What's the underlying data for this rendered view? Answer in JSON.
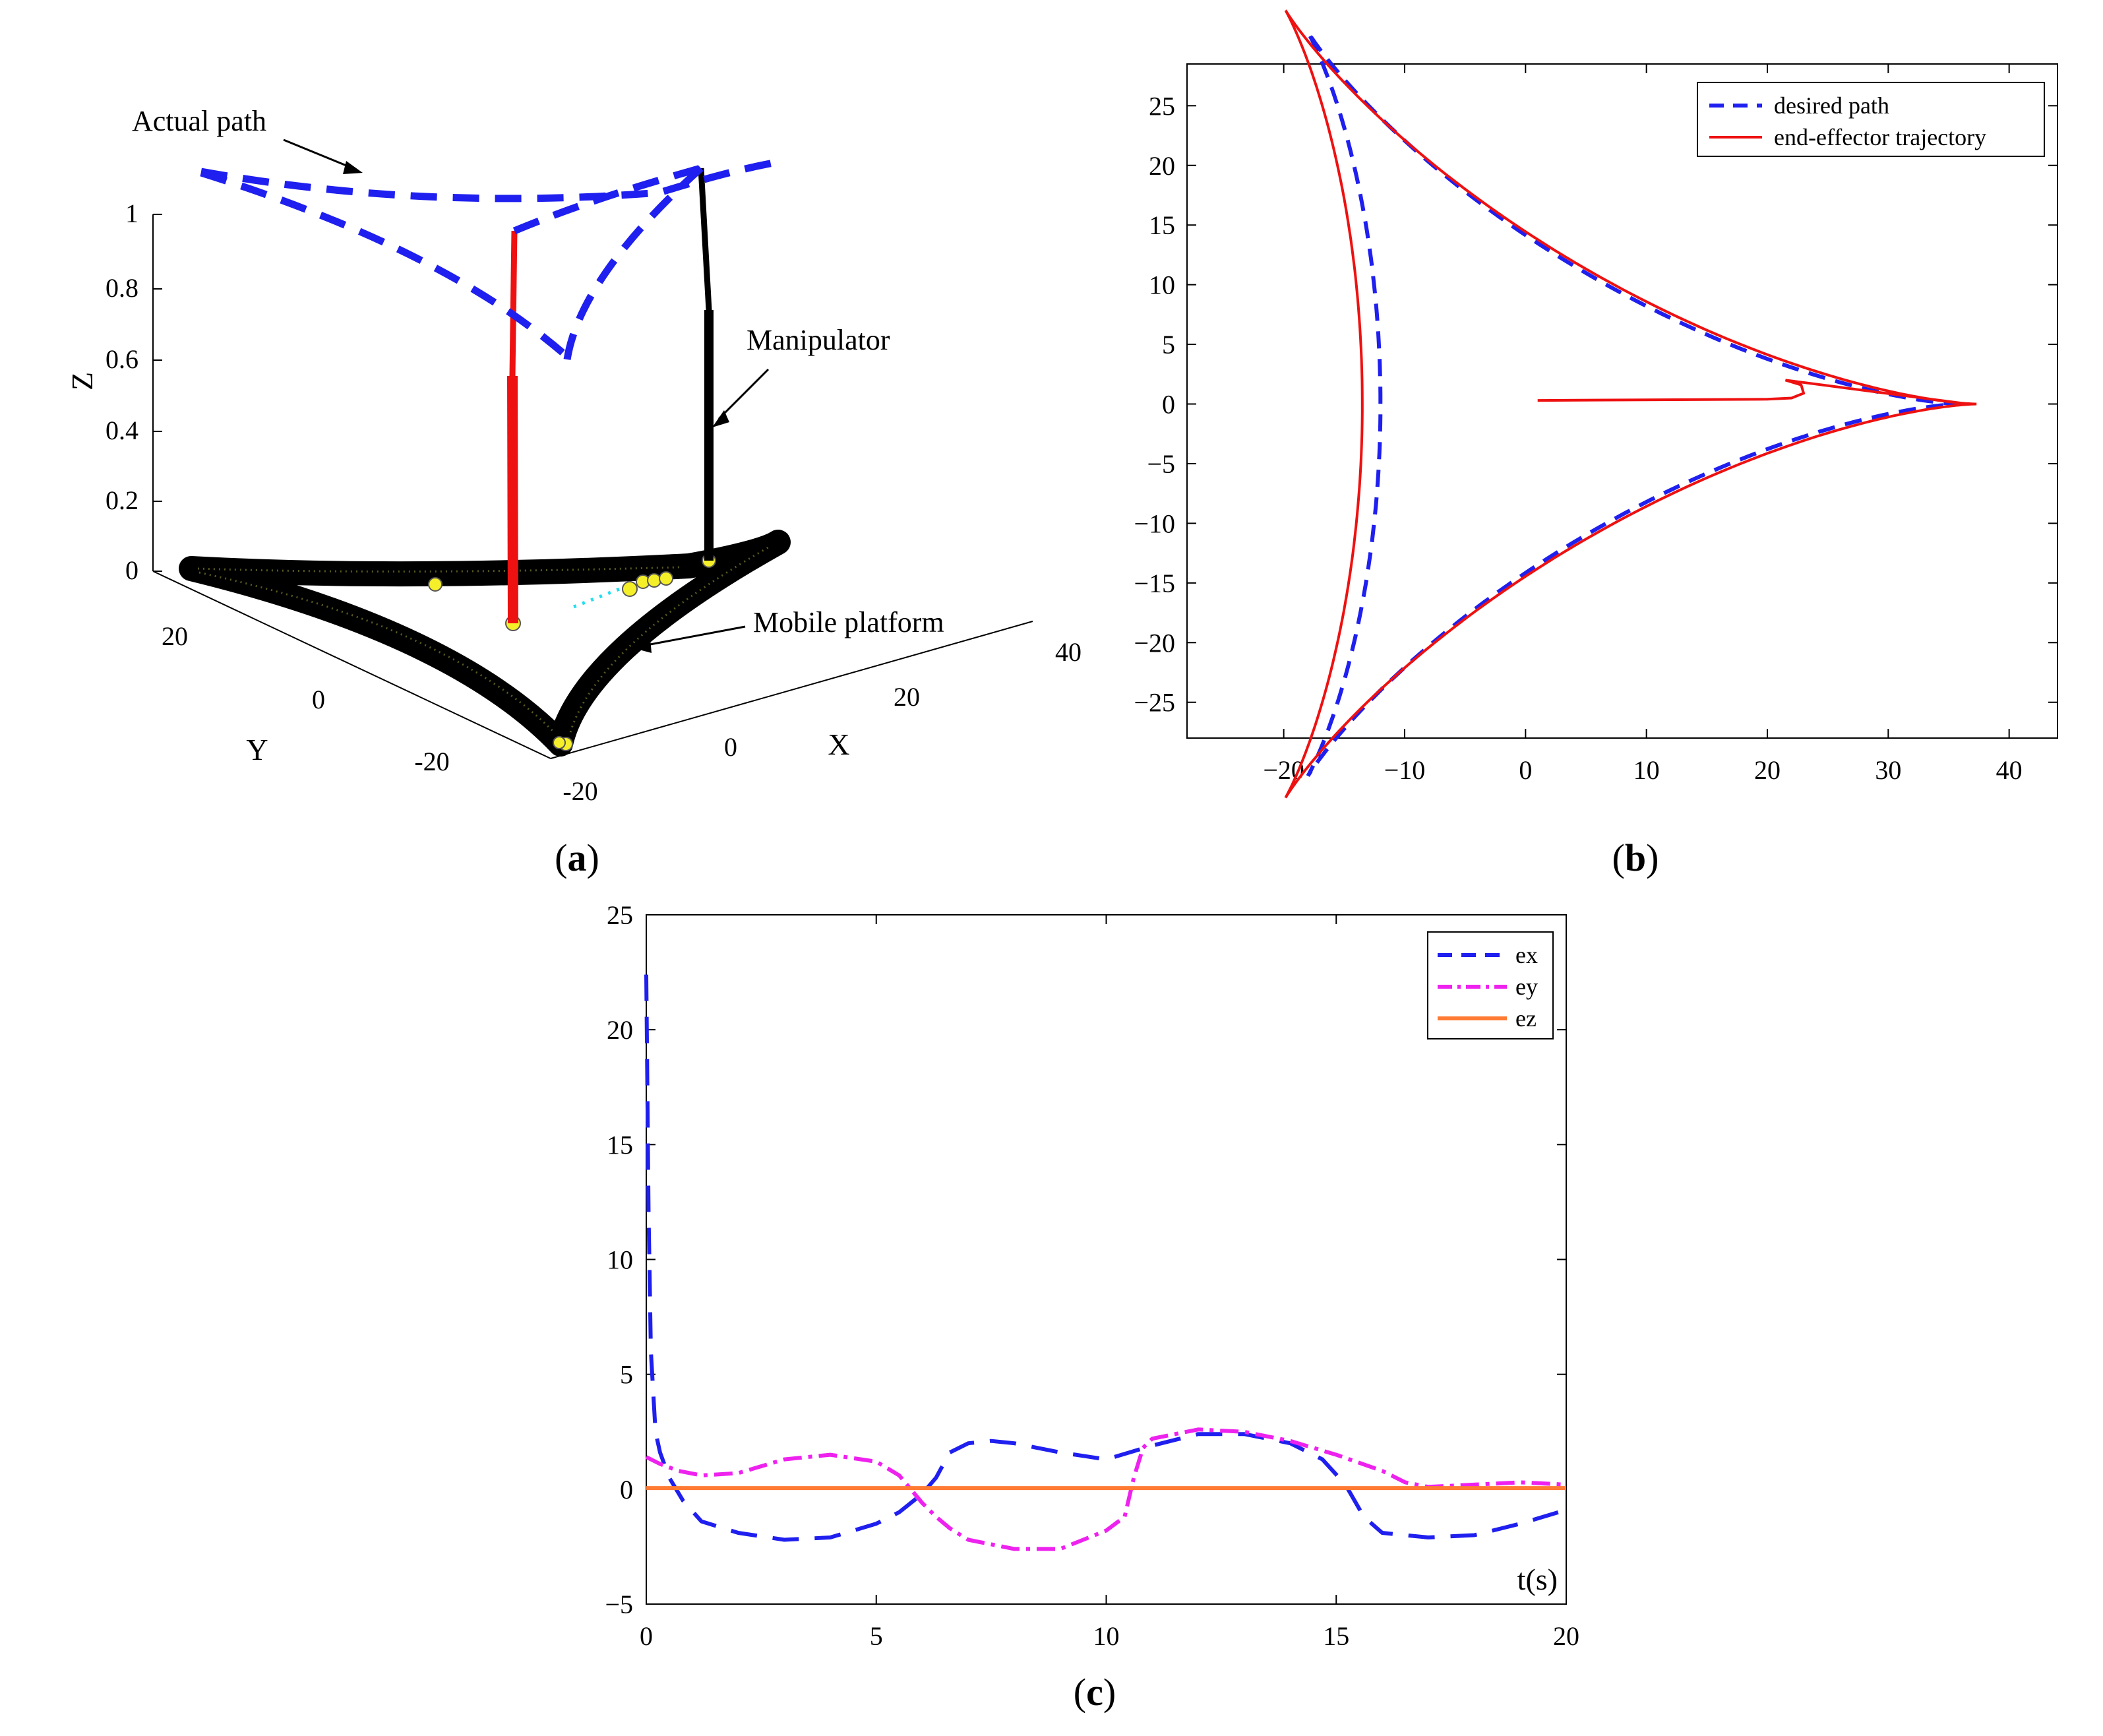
{
  "panels": [
    {
      "id": "a",
      "label_open": "(",
      "label_letter": "a",
      "label_close": ")"
    },
    {
      "id": "b",
      "label_open": "(",
      "label_letter": "b",
      "label_close": ")"
    },
    {
      "id": "c",
      "label_open": "(",
      "label_letter": "c",
      "label_close": ")"
    }
  ],
  "chart_data": [
    {
      "id": "a",
      "type": "line",
      "title": "",
      "xlabel": "X",
      "ylabel": "Y",
      "zlabel": "Z",
      "xticks": [
        "-20",
        "0",
        "20",
        "40"
      ],
      "yticks": [
        "20",
        "0",
        "-20"
      ],
      "zticks": [
        "0",
        "0.2",
        "0.4",
        "0.6",
        "0.8",
        "1"
      ],
      "xlim": [
        -20,
        40
      ],
      "ylim": [
        -30,
        30
      ],
      "zlim": [
        0,
        1
      ],
      "annotations": [
        "Actual path",
        "Manipulator",
        "Mobile platform"
      ],
      "colors": {
        "path": "#1f1fef",
        "platform": "#000000",
        "arm1": "#ee1111",
        "arm2": "#000000",
        "marker": "#f5ef2a",
        "trace": "#22ddee"
      }
    },
    {
      "id": "b",
      "type": "line",
      "title": "",
      "xlabel": "",
      "ylabel": "",
      "xlim": [
        -28,
        44
      ],
      "ylim": [
        -28,
        28.5
      ],
      "xticks": [
        -20,
        -10,
        0,
        10,
        20,
        30,
        40
      ],
      "yticks": [
        25,
        20,
        15,
        10,
        5,
        0,
        -5,
        -10,
        -15,
        -20,
        -25
      ],
      "legend_position": "top-right",
      "series": [
        {
          "name": "desired path",
          "style": "dashed",
          "color": "#1f1fef",
          "shape": "deltoid",
          "R": 12,
          "offset": [
            0,
            0
          ]
        },
        {
          "name": "end-effector trajectory",
          "style": "solid",
          "color": "#ee1111",
          "shape": "deltoid",
          "R": 12.7,
          "offset": [
            -0.8,
            0
          ],
          "approach": [
            [
              1,
              0.3
            ],
            [
              20,
              0.4
            ],
            [
              22,
              0.5
            ],
            [
              23,
              0.9
            ],
            [
              22.8,
              1.6
            ],
            [
              21.5,
              2.0
            ]
          ]
        }
      ]
    },
    {
      "id": "c",
      "type": "line",
      "title": "",
      "xlabel": "t(s)",
      "ylabel": "",
      "xlim": [
        0,
        20
      ],
      "ylim": [
        -5,
        25
      ],
      "xticks": [
        0,
        5,
        10,
        15,
        20
      ],
      "yticks": [
        25,
        20,
        15,
        10,
        5,
        0,
        -5
      ],
      "legend_position": "top-right",
      "series": [
        {
          "name": "ex",
          "style": "dashed",
          "color": "#1f1fef",
          "x": [
            0,
            0.05,
            0.1,
            0.2,
            0.3,
            0.5,
            0.8,
            1.2,
            2,
            3,
            4,
            5,
            5.5,
            6,
            6.3,
            6.6,
            7,
            7.5,
            8,
            9,
            10,
            11,
            12,
            13,
            14,
            14.7,
            15.2,
            15.6,
            16,
            16.5,
            17,
            18,
            19,
            20
          ],
          "y": [
            22.4,
            12,
            6,
            2.5,
            1.6,
            0.5,
            -0.5,
            -1.4,
            -1.9,
            -2.2,
            -2.1,
            -1.5,
            -1.0,
            -0.2,
            0.5,
            1.6,
            2.0,
            2.1,
            2.0,
            1.6,
            1.3,
            1.9,
            2.4,
            2.4,
            2.0,
            1.3,
            0.2,
            -1.2,
            -1.9,
            -2.0,
            -2.1,
            -2.0,
            -1.5,
            -0.9
          ]
        },
        {
          "name": "ey",
          "style": "dashdot",
          "color": "#ee22ee",
          "x": [
            0,
            0.3,
            0.7,
            1.2,
            2,
            3,
            4,
            5,
            5.5,
            6,
            6.3,
            6.6,
            7,
            8,
            9,
            10,
            10.4,
            10.6,
            10.8,
            11,
            12,
            13,
            14,
            15,
            16,
            16.5,
            17,
            18,
            19,
            20
          ],
          "y": [
            1.4,
            1.1,
            0.8,
            0.6,
            0.7,
            1.3,
            1.5,
            1.2,
            0.6,
            -0.6,
            -1.2,
            -1.7,
            -2.2,
            -2.6,
            -2.6,
            -1.8,
            -1.2,
            0.5,
            1.8,
            2.2,
            2.6,
            2.5,
            2.1,
            1.5,
            0.8,
            0.3,
            0.1,
            0.2,
            0.3,
            0.2
          ]
        },
        {
          "name": "ez",
          "style": "solid",
          "color": "#ff7a33",
          "x": [
            0,
            20
          ],
          "y": [
            0.05,
            0.05
          ]
        }
      ]
    }
  ]
}
